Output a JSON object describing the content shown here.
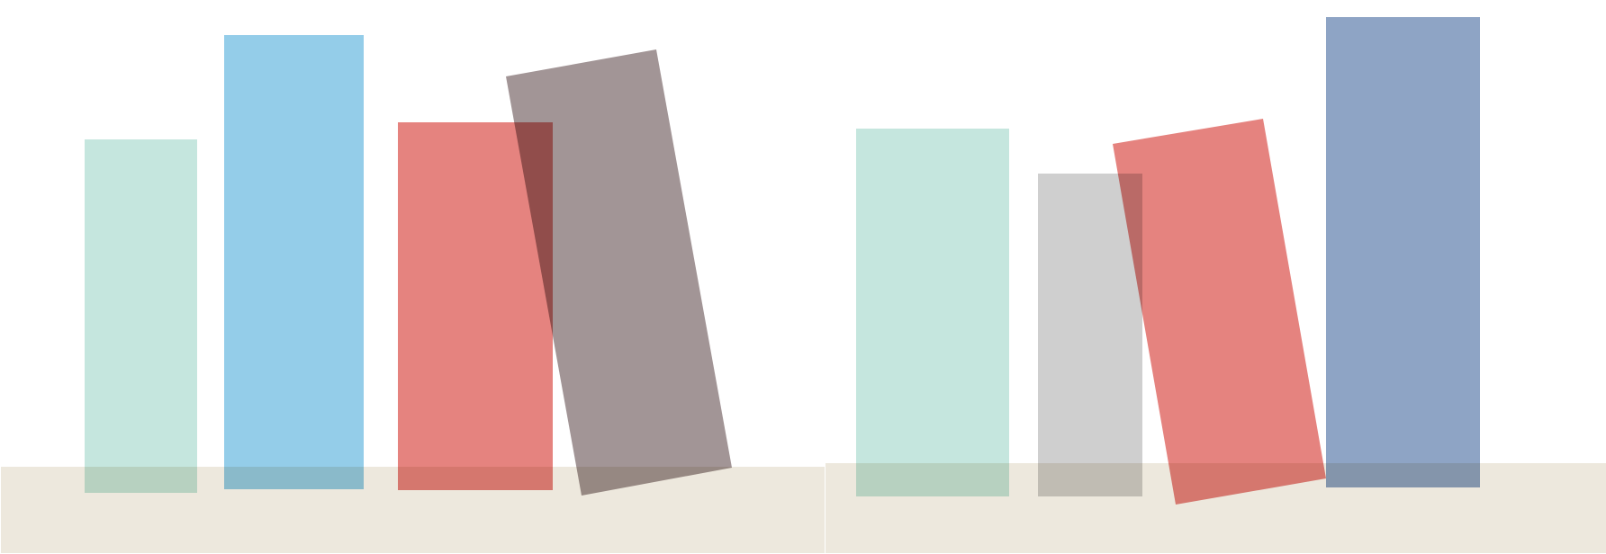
{
  "palette": {
    "background": "#ffffff",
    "shelf": "#ede8dd",
    "mint": "#c5e6de",
    "sky": "#94cde9",
    "coral": "#e5837f",
    "mauve": "#a29596",
    "gray": "#cfcfcf",
    "slate": "#8ea4c5"
  },
  "groups": [
    {
      "name": "left-group",
      "shelf_color": "shelf",
      "items": [
        {
          "name": "mint-block",
          "color": "mint",
          "tilted": false
        },
        {
          "name": "sky-block",
          "color": "sky",
          "tilted": false
        },
        {
          "name": "coral-block",
          "color": "coral",
          "tilted": false
        },
        {
          "name": "mauve-block",
          "color": "mauve",
          "tilted": true
        }
      ]
    },
    {
      "name": "right-group",
      "shelf_color": "shelf",
      "items": [
        {
          "name": "mint-block",
          "color": "mint",
          "tilted": false
        },
        {
          "name": "gray-block",
          "color": "gray",
          "tilted": false
        },
        {
          "name": "coral-block",
          "color": "coral",
          "tilted": true
        },
        {
          "name": "slate-block",
          "color": "slate",
          "tilted": false
        }
      ]
    }
  ]
}
